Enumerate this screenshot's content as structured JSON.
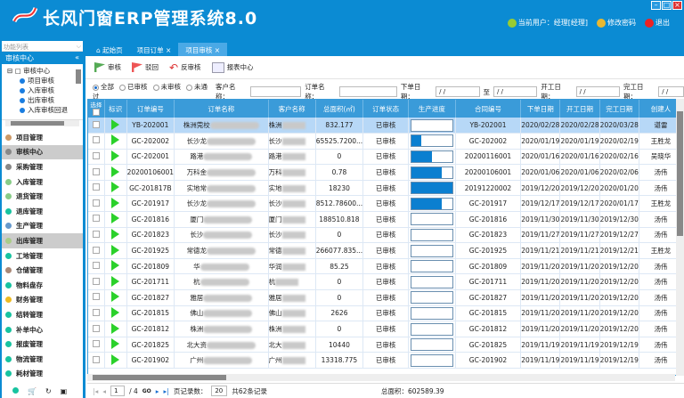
{
  "app": {
    "title": "长风门窗ERP管理系统8.0",
    "user": "当前用户：经理[经理]",
    "change_password": "修改密码",
    "logout": "退出"
  },
  "sidebar": {
    "list_title": "功能列表",
    "section": "审核中心",
    "tree": {
      "root": "审核中心",
      "children": [
        "项目审核",
        "入库审核",
        "出库审核",
        "入库审核回退"
      ]
    },
    "menu": [
      {
        "label": "项目管理"
      },
      {
        "label": "审核中心",
        "selected": true
      },
      {
        "label": "采购管理"
      },
      {
        "label": "入库管理"
      },
      {
        "label": "退货管理"
      },
      {
        "label": "退库管理"
      },
      {
        "label": "生产管理"
      },
      {
        "label": "出库管理",
        "selected": true
      },
      {
        "label": "工地管理"
      },
      {
        "label": "仓储管理"
      },
      {
        "label": "物料盘存"
      },
      {
        "label": "财务管理"
      },
      {
        "label": "结转管理"
      },
      {
        "label": "补单中心"
      },
      {
        "label": "报废管理"
      },
      {
        "label": "物流管理"
      },
      {
        "label": "耗材管理"
      }
    ]
  },
  "tabs": [
    {
      "label": "起始页"
    },
    {
      "label": "项目订单"
    },
    {
      "label": "项目审核",
      "active": true
    }
  ],
  "toolbar": {
    "approve": "审核",
    "reject": "驳回",
    "unapprove": "反审核",
    "report": "报表中心"
  },
  "filter": {
    "radios": [
      "全部",
      "已审核",
      "未审核",
      "未通过"
    ],
    "selected": "全部",
    "customer_label": "客户名称：",
    "order_label": "订单名称：",
    "order_date_label": "下单日期：",
    "to_label": "至",
    "start_date_label": "开工日期：",
    "finish_date_label": "完工日期：",
    "date_placeholder": "/ /"
  },
  "table": {
    "columns": [
      "选择",
      "标识",
      "订单编号",
      "订单名称",
      "客户名称",
      "总面积(㎡)",
      "订单状态",
      "生产进度",
      "合同编号",
      "下单日期",
      "开工日期",
      "完工日期",
      "创建人"
    ],
    "rows": [
      [
        "YB-202001",
        "株洲莞校",
        "株洲",
        "832.177",
        "已审核",
        0,
        "YB-202001",
        "2020/02/28",
        "2020/02/28",
        "2020/03/28",
        "谌雷"
      ],
      [
        "GC-202002",
        "长沙龙",
        "长沙",
        "65525.7200...",
        "已审核",
        25,
        "GC-202002",
        "2020/01/19",
        "2020/01/19",
        "2020/02/19",
        "王胜龙"
      ],
      [
        "GC-202001",
        "路港",
        "路港",
        "0",
        "已审核",
        50,
        "20200116001",
        "2020/01/16",
        "2020/01/16",
        "2020/02/16",
        "吴晓华"
      ],
      [
        "20200106001",
        "万科金",
        "万科",
        "0.78",
        "已审核",
        75,
        "20200106001",
        "2020/01/06",
        "2020/01/06",
        "2020/02/06",
        "汤伟"
      ],
      [
        "GC-201817B",
        "实地常",
        "实地",
        "18230",
        "已审核",
        100,
        "20191220002",
        "2019/12/20",
        "2019/12/20",
        "2020/01/20",
        "汤伟"
      ],
      [
        "GC-201917",
        "长沙龙",
        "长沙",
        "8512.78600...",
        "已审核",
        75,
        "GC-201917",
        "2019/12/17",
        "2019/12/17",
        "2020/01/17",
        "王胜龙"
      ],
      [
        "GC-201816",
        "厦门",
        "厦门",
        "188510.818",
        "已审核",
        0,
        "GC-201816",
        "2019/11/30",
        "2019/11/30",
        "2019/12/30",
        "汤伟"
      ],
      [
        "GC-201823",
        "长沙",
        "长沙",
        "0",
        "已审核",
        0,
        "GC-201823",
        "2019/11/27",
        "2019/11/27",
        "2019/12/27",
        "汤伟"
      ],
      [
        "GC-201925",
        "常德龙",
        "常德",
        "266077.835...",
        "已审核",
        0,
        "GC-201925",
        "2019/11/21",
        "2019/11/21",
        "2019/12/21",
        "王胜龙"
      ],
      [
        "GC-201809",
        "华",
        "华润",
        "85.25",
        "已审核",
        0,
        "GC-201809",
        "2019/11/20",
        "2019/11/20",
        "2019/12/20",
        "汤伟"
      ],
      [
        "GC-201711",
        "杭",
        "杭",
        "0",
        "已审核",
        0,
        "GC-201711",
        "2019/11/20",
        "2019/11/20",
        "2019/12/20",
        "汤伟"
      ],
      [
        "GC-201827",
        "雅居",
        "雅居",
        "0",
        "已审核",
        0,
        "GC-201827",
        "2019/11/20",
        "2019/11/20",
        "2019/12/20",
        "汤伟"
      ],
      [
        "GC-201815",
        "佛山",
        "佛山",
        "2626",
        "已审核",
        0,
        "GC-201815",
        "2019/11/20",
        "2019/11/20",
        "2019/12/20",
        "汤伟"
      ],
      [
        "GC-201812",
        "株洲",
        "株洲",
        "0",
        "已审核",
        0,
        "GC-201812",
        "2019/11/20",
        "2019/11/20",
        "2019/12/20",
        "汤伟"
      ],
      [
        "GC-201825",
        "北大资",
        "北大",
        "10440",
        "已审核",
        0,
        "GC-201825",
        "2019/11/19",
        "2019/11/19",
        "2019/12/19",
        "汤伟"
      ],
      [
        "GC-201902",
        "广州",
        "广州",
        "13318.775",
        "已审核",
        0,
        "GC-201902",
        "2019/11/19",
        "2019/11/19",
        "2019/12/19",
        "汤伟"
      ]
    ]
  },
  "pager": {
    "page": "1",
    "total_pages": "/ 4",
    "go": "GO",
    "page_size_label": "页记录数：",
    "page_size": "20",
    "total": "共62条记录",
    "total_area": "总面积：602589.39"
  },
  "colors": {
    "brand": "#0b8bd3",
    "header": "#3a9bd9",
    "progress": "#0b7fd0",
    "flag": "#2bd12b"
  }
}
